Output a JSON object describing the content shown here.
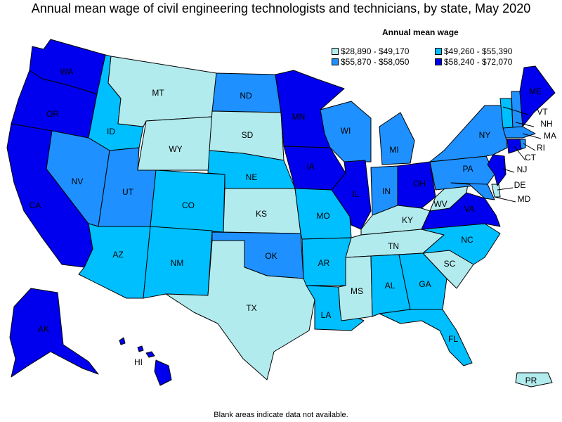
{
  "title": "Annual mean wage of civil engineering technologists and technicians, by state, May 2020",
  "legend": {
    "title": "Annual mean wage",
    "ranges": [
      {
        "label": "$28,890 - $49,170",
        "color": "#b2ebee"
      },
      {
        "label": "$49,260 - $55,390",
        "color": "#00bfff"
      },
      {
        "label": "$55,870 - $58,050",
        "color": "#1e90ff"
      },
      {
        "label": "$58,240 - $72,070",
        "color": "#0000ee"
      }
    ]
  },
  "footnote": "Blank areas indicate data not available.",
  "states": {
    "AK": 3,
    "AL": 1,
    "AR": 1,
    "AZ": 1,
    "CA": 3,
    "CO": 1,
    "CT": 3,
    "DE": 0,
    "FL": 1,
    "GA": 1,
    "HI": 3,
    "IA": 3,
    "ID": 1,
    "IL": 3,
    "IN": 2,
    "KS": 0,
    "KY": 0,
    "LA": 1,
    "MA": 2,
    "MD": 2,
    "ME": 3,
    "MI": 2,
    "MN": 3,
    "MO": 1,
    "MS": 0,
    "MT": 0,
    "NC": 1,
    "ND": 2,
    "NE": 1,
    "NH": 2,
    "NJ": 3,
    "NM": 1,
    "NV": 2,
    "NY": 2,
    "OH": 3,
    "OK": 2,
    "OR": 3,
    "PA": 2,
    "PR": 0,
    "RI": 2,
    "SC": 0,
    "SD": 0,
    "TN": 0,
    "TX": 0,
    "UT": 2,
    "VA": 3,
    "VT": 1,
    "WA": 3,
    "WI": 2,
    "WV": 0,
    "WY": 0
  }
}
